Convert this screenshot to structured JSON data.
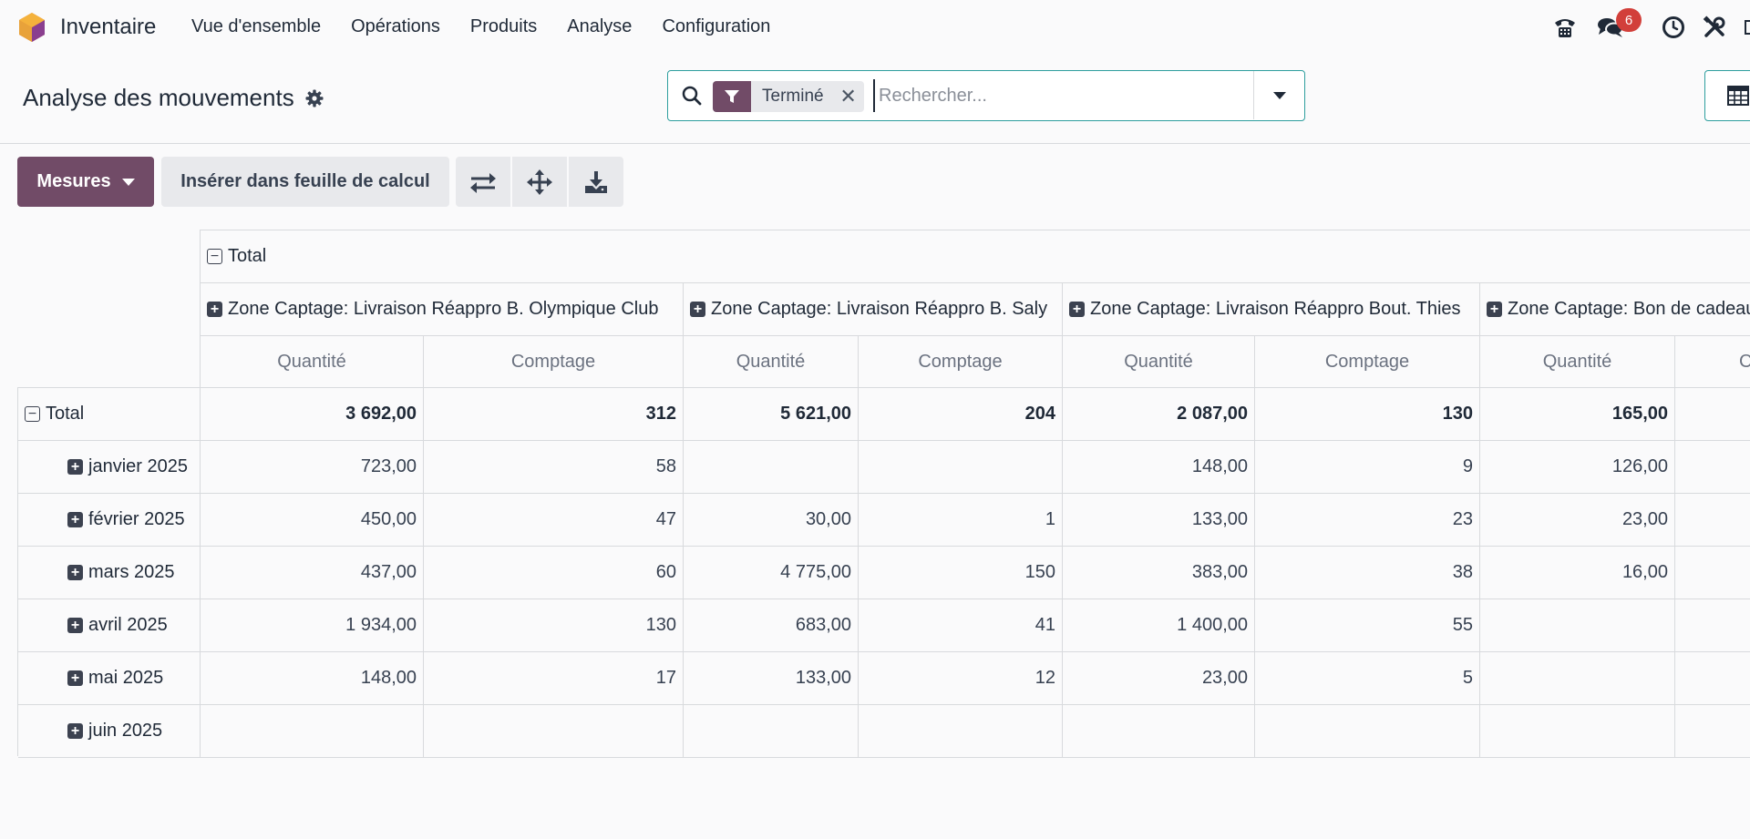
{
  "navbar": {
    "app_name": "Inventaire",
    "menu": [
      "Vue d'ensemble",
      "Opérations",
      "Produits",
      "Analyse",
      "Configuration"
    ],
    "icons": [
      "phone-icon",
      "chat-icon",
      "clock-icon",
      "tools-icon"
    ],
    "chat_badge": "6"
  },
  "control_panel": {
    "title": "Analyse des mouvements",
    "search": {
      "facet_label": "Terminé",
      "placeholder": "Rechercher..."
    }
  },
  "toolbar": {
    "measures_label": "Mesures",
    "insert_label": "Insérer dans feuille de calcul"
  },
  "pivot": {
    "col_total_label": "Total",
    "row_total_label": "Total",
    "column_groups": [
      "Zone Captage: Livraison Réappro B. Olympique Club",
      "Zone Captage: Livraison Réappro B. Saly",
      "Zone Captage: Livraison Réappro Bout. Thies",
      "Zone Captage: Bon de cadeau"
    ],
    "measures": [
      "Quantité",
      "Comptage"
    ],
    "totals": [
      "3 692,00",
      "312",
      "5 621,00",
      "204",
      "2 087,00",
      "130",
      "165,00",
      ""
    ],
    "rows": [
      {
        "label": "janvier 2025",
        "values": [
          "723,00",
          "58",
          "",
          "",
          "148,00",
          "9",
          "126,00",
          ""
        ]
      },
      {
        "label": "février 2025",
        "values": [
          "450,00",
          "47",
          "30,00",
          "1",
          "133,00",
          "23",
          "23,00",
          ""
        ]
      },
      {
        "label": "mars 2025",
        "values": [
          "437,00",
          "60",
          "4 775,00",
          "150",
          "383,00",
          "38",
          "16,00",
          ""
        ]
      },
      {
        "label": "avril 2025",
        "values": [
          "1 934,00",
          "130",
          "683,00",
          "41",
          "1 400,00",
          "55",
          "",
          ""
        ]
      },
      {
        "label": "mai 2025",
        "values": [
          "148,00",
          "17",
          "133,00",
          "12",
          "23,00",
          "5",
          "",
          ""
        ]
      },
      {
        "label": "juin 2025",
        "values": [
          "",
          "",
          "",
          "",
          "",
          "",
          "",
          ""
        ]
      }
    ]
  },
  "colors": {
    "brand": "#714b67",
    "accent": "#2e9e9e",
    "badge": "#d23f3a"
  }
}
